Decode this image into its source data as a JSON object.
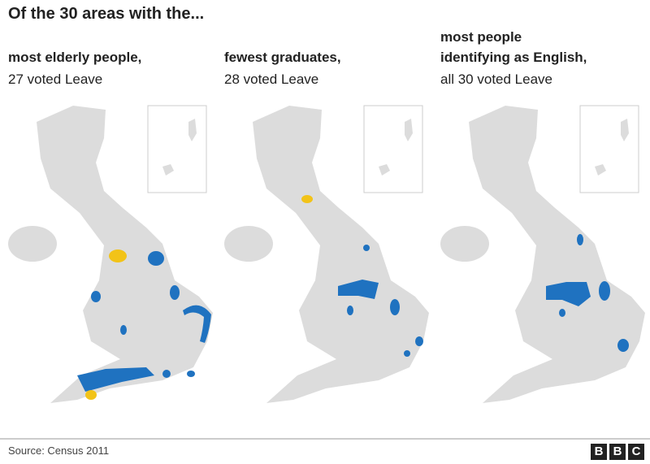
{
  "title": "Of the 30 areas with the...",
  "panels": [
    {
      "heading": [
        "most elderly people,"
      ],
      "subheading": "27 voted Leave"
    },
    {
      "heading": [
        "fewest graduates,"
      ],
      "subheading": "28 voted Leave"
    },
    {
      "heading": [
        "most people",
        "identifying as English,"
      ],
      "subheading": "all 30 voted Leave"
    }
  ],
  "source": "Source: Census 2011",
  "logo": [
    "B",
    "B",
    "C"
  ]
}
